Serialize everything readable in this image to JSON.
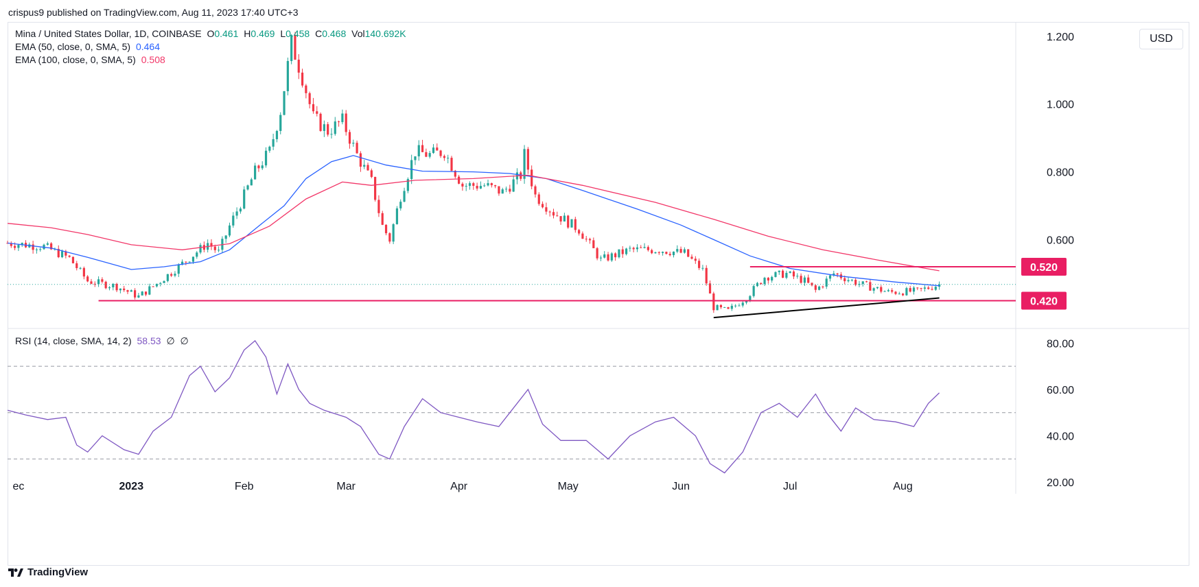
{
  "header": {
    "published_line": "crispus9 published on TradingView.com, Aug 11, 2023 17:40 UTC+3"
  },
  "legend": {
    "symbol": "Mina / United States Dollar, 1D, COINBASE",
    "o_label": "O",
    "o_value": "0.461",
    "h_label": "H",
    "h_value": "0.469",
    "l_label": "L",
    "l_value": "0.458",
    "c_label": "C",
    "c_value": "0.468",
    "vol_label": "Vol",
    "vol_value": "140.692K",
    "ema50_label": "EMA (50, close, 0, SMA, 5)",
    "ema50_value": "0.464",
    "ema100_label": "EMA (100, close, 0, SMA, 5)",
    "ema100_value": "0.508",
    "rsi_label": "RSI (14, close, SMA, 14, 2)",
    "rsi_value": "58.53",
    "rsi_extra1": "∅",
    "rsi_extra2": "∅"
  },
  "currency_button": "USD",
  "footer": {
    "brand": "TradingView",
    "logo_icon": "tradingview-logo-icon"
  },
  "colors": {
    "up": "#26a69a",
    "down": "#f23645",
    "ema50": "#2962ff",
    "ema100": "#f23668",
    "rsi": "#7e57c2",
    "level": "#e91e63",
    "trendline": "#000000",
    "grid_text": "#131722"
  },
  "chart_data": [
    {
      "type": "candlestick",
      "title": "Mina / United States Dollar, 1D, COINBASE",
      "y_axis_labels": [
        "1.200",
        "1.000",
        "0.800",
        "0.600"
      ],
      "ylim": [
        0.34,
        1.24
      ],
      "x_axis_labels": [
        "ec",
        "2023",
        "Feb",
        "Mar",
        "Apr",
        "May",
        "Jun",
        "Jul",
        "Aug"
      ],
      "x_range": [
        "2022-11-28",
        "2023-09-01"
      ],
      "price_labels": [
        {
          "value": 0.52,
          "label": "0.520"
        },
        {
          "value": 0.42,
          "label": "0.420"
        }
      ],
      "horizontal_levels": [
        {
          "value": 0.42,
          "from": "2022-12-23",
          "to": "2023-08-31"
        },
        {
          "value": 0.52,
          "from": "2023-06-20",
          "to": "2023-08-31"
        }
      ],
      "trendline": {
        "from": {
          "date": "2023-06-10",
          "value": 0.37
        },
        "to": {
          "date": "2023-08-11",
          "value": 0.428
        }
      },
      "last_close": 0.468,
      "series": [
        {
          "name": "EMA (50, close, 0, SMA, 5)",
          "points": [
            [
              "2022-11-28",
              0.59
            ],
            [
              "2022-12-10",
              0.575
            ],
            [
              "2022-12-20",
              0.548
            ],
            [
              "2023-01-01",
              0.512
            ],
            [
              "2023-01-10",
              0.52
            ],
            [
              "2023-01-20",
              0.535
            ],
            [
              "2023-01-28",
              0.57
            ],
            [
              "2023-02-05",
              0.64
            ],
            [
              "2023-02-12",
              0.7
            ],
            [
              "2023-02-18",
              0.78
            ],
            [
              "2023-02-25",
              0.83
            ],
            [
              "2023-03-03",
              0.848
            ],
            [
              "2023-03-12",
              0.82
            ],
            [
              "2023-03-22",
              0.802
            ],
            [
              "2023-04-05",
              0.8
            ],
            [
              "2023-04-15",
              0.795
            ],
            [
              "2023-04-25",
              0.78
            ],
            [
              "2023-05-05",
              0.745
            ],
            [
              "2023-05-20",
              0.69
            ],
            [
              "2023-06-01",
              0.643
            ],
            [
              "2023-06-10",
              0.6
            ],
            [
              "2023-06-20",
              0.552
            ],
            [
              "2023-07-01",
              0.515
            ],
            [
              "2023-07-15",
              0.492
            ],
            [
              "2023-07-30",
              0.475
            ],
            [
              "2023-08-11",
              0.464
            ]
          ]
        },
        {
          "name": "EMA (100, close, 0, SMA, 5)",
          "points": [
            [
              "2022-11-28",
              0.648
            ],
            [
              "2022-12-10",
              0.635
            ],
            [
              "2022-12-20",
              0.615
            ],
            [
              "2023-01-01",
              0.585
            ],
            [
              "2023-01-15",
              0.57
            ],
            [
              "2023-01-28",
              0.588
            ],
            [
              "2023-02-08",
              0.64
            ],
            [
              "2023-02-18",
              0.72
            ],
            [
              "2023-02-28",
              0.77
            ],
            [
              "2023-03-08",
              0.76
            ],
            [
              "2023-03-20",
              0.775
            ],
            [
              "2023-04-05",
              0.78
            ],
            [
              "2023-04-20",
              0.79
            ],
            [
              "2023-05-05",
              0.76
            ],
            [
              "2023-05-25",
              0.71
            ],
            [
              "2023-06-10",
              0.66
            ],
            [
              "2023-06-25",
              0.61
            ],
            [
              "2023-07-10",
              0.57
            ],
            [
              "2023-07-25",
              0.54
            ],
            [
              "2023-08-11",
              0.508
            ]
          ]
        }
      ],
      "candles_outline": [
        [
          "2022-11-28",
          0.59
        ],
        [
          "2022-12-08",
          0.58
        ],
        [
          "2022-12-15",
          0.545
        ],
        [
          "2022-12-20",
          0.478
        ],
        [
          "2022-12-28",
          0.462
        ],
        [
          "2023-01-03",
          0.432
        ],
        [
          "2023-01-08",
          0.47
        ],
        [
          "2023-01-13",
          0.512
        ],
        [
          "2023-01-18",
          0.555
        ],
        [
          "2023-01-22",
          0.59
        ],
        [
          "2023-01-25",
          0.562
        ],
        [
          "2023-01-28",
          0.64
        ],
        [
          "2023-02-01",
          0.73
        ],
        [
          "2023-02-04",
          0.8
        ],
        [
          "2023-02-08",
          0.86
        ],
        [
          "2023-02-11",
          0.98
        ],
        [
          "2023-02-14",
          1.18
        ],
        [
          "2023-02-17",
          1.08
        ],
        [
          "2023-02-20",
          0.96
        ],
        [
          "2023-02-24",
          0.92
        ],
        [
          "2023-02-28",
          0.95
        ],
        [
          "2023-03-04",
          0.85
        ],
        [
          "2023-03-08",
          0.77
        ],
        [
          "2023-03-11",
          0.64
        ],
        [
          "2023-03-13",
          0.6
        ],
        [
          "2023-03-16",
          0.73
        ],
        [
          "2023-03-20",
          0.86
        ],
        [
          "2023-03-24",
          0.85
        ],
        [
          "2023-03-28",
          0.86
        ],
        [
          "2023-04-02",
          0.76
        ],
        [
          "2023-04-08",
          0.76
        ],
        [
          "2023-04-13",
          0.74
        ],
        [
          "2023-04-18",
          0.79
        ],
        [
          "2023-04-19",
          0.85
        ],
        [
          "2023-04-22",
          0.73
        ],
        [
          "2023-04-27",
          0.68
        ],
        [
          "2023-05-04",
          0.63
        ],
        [
          "2023-05-10",
          0.54
        ],
        [
          "2023-05-18",
          0.57
        ],
        [
          "2023-05-26",
          0.57
        ],
        [
          "2023-06-02",
          0.56
        ],
        [
          "2023-06-07",
          0.51
        ],
        [
          "2023-06-10",
          0.4
        ],
        [
          "2023-06-14",
          0.39
        ],
        [
          "2023-06-19",
          0.43
        ],
        [
          "2023-06-24",
          0.49
        ],
        [
          "2023-06-30",
          0.5
        ],
        [
          "2023-07-05",
          0.478
        ],
        [
          "2023-07-08",
          0.45
        ],
        [
          "2023-07-13",
          0.5
        ],
        [
          "2023-07-20",
          0.47
        ],
        [
          "2023-07-28",
          0.445
        ],
        [
          "2023-08-05",
          0.448
        ],
        [
          "2023-08-11",
          0.468
        ]
      ]
    },
    {
      "type": "line",
      "title": "RSI (14, close, SMA, 14, 2)",
      "y_axis_labels": [
        "80.00",
        "60.00",
        "40.00",
        "20.00"
      ],
      "ylim": [
        15,
        86
      ],
      "bands": [
        70,
        50,
        30
      ],
      "series": [
        {
          "name": "RSI (14, close, SMA, 14, 2)",
          "points": [
            [
              "2022-11-28",
              51
            ],
            [
              "2022-12-03",
              49
            ],
            [
              "2022-12-09",
              47
            ],
            [
              "2022-12-14",
              48
            ],
            [
              "2022-12-17",
              36
            ],
            [
              "2022-12-20",
              33
            ],
            [
              "2022-12-24",
              40
            ],
            [
              "2022-12-30",
              34
            ],
            [
              "2023-01-03",
              32
            ],
            [
              "2023-01-07",
              42
            ],
            [
              "2023-01-12",
              48
            ],
            [
              "2023-01-17",
              66
            ],
            [
              "2023-01-20",
              70
            ],
            [
              "2023-01-24",
              59
            ],
            [
              "2023-01-28",
              65
            ],
            [
              "2023-02-01",
              77
            ],
            [
              "2023-02-04",
              81
            ],
            [
              "2023-02-07",
              74
            ],
            [
              "2023-02-10",
              58
            ],
            [
              "2023-02-13",
              71
            ],
            [
              "2023-02-16",
              60
            ],
            [
              "2023-02-19",
              54
            ],
            [
              "2023-02-23",
              51
            ],
            [
              "2023-03-01",
              48
            ],
            [
              "2023-03-05",
              44
            ],
            [
              "2023-03-10",
              32
            ],
            [
              "2023-03-13",
              30
            ],
            [
              "2023-03-17",
              44
            ],
            [
              "2023-03-22",
              56
            ],
            [
              "2023-03-27",
              50
            ],
            [
              "2023-04-01",
              48
            ],
            [
              "2023-04-06",
              46
            ],
            [
              "2023-04-12",
              44
            ],
            [
              "2023-04-17",
              54
            ],
            [
              "2023-04-20",
              60
            ],
            [
              "2023-04-24",
              45
            ],
            [
              "2023-04-29",
              38
            ],
            [
              "2023-05-06",
              38
            ],
            [
              "2023-05-12",
              30
            ],
            [
              "2023-05-18",
              40
            ],
            [
              "2023-05-25",
              46
            ],
            [
              "2023-05-30",
              48
            ],
            [
              "2023-06-05",
              40
            ],
            [
              "2023-06-09",
              28
            ],
            [
              "2023-06-13",
              24
            ],
            [
              "2023-06-18",
              33
            ],
            [
              "2023-06-23",
              50
            ],
            [
              "2023-06-28",
              54
            ],
            [
              "2023-07-03",
              48
            ],
            [
              "2023-07-08",
              58
            ],
            [
              "2023-07-11",
              50
            ],
            [
              "2023-07-15",
              42
            ],
            [
              "2023-07-19",
              52
            ],
            [
              "2023-07-24",
              47
            ],
            [
              "2023-07-30",
              46
            ],
            [
              "2023-08-04",
              44
            ],
            [
              "2023-08-08",
              54
            ],
            [
              "2023-08-11",
              58.53
            ]
          ]
        }
      ]
    }
  ]
}
